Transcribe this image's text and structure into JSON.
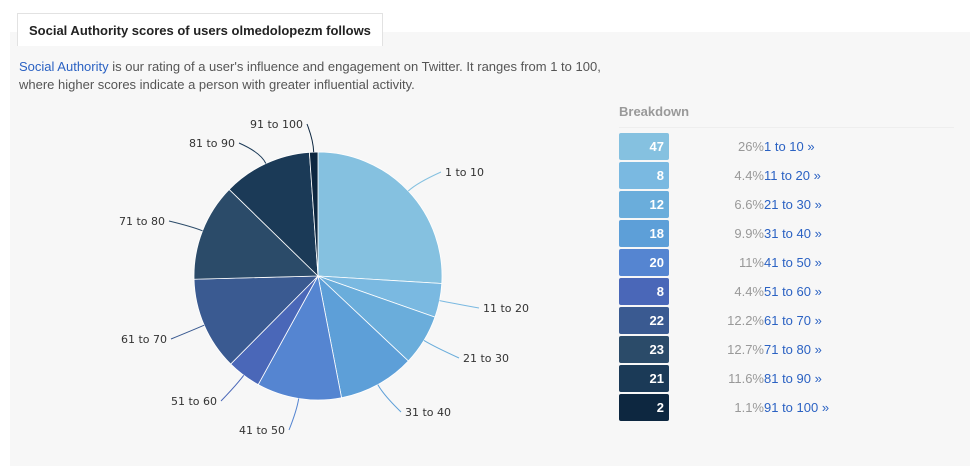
{
  "header": {
    "title": "Social Authority scores of users olmedolopezm follows"
  },
  "description": {
    "link_text": "Social Authority",
    "text": " is our rating of a user's influence and engagement on Twitter. It ranges from 1 to 100, where higher scores indicate a person with greater influential activity."
  },
  "breakdown": {
    "title": "Breakdown",
    "rows": [
      {
        "count": "47",
        "pct": "26%",
        "link": "1 to 10 »",
        "color": "#85c1e0"
      },
      {
        "count": "8",
        "pct": "4.4%",
        "link": "11 to 20 »",
        "color": "#7ab9e1"
      },
      {
        "count": "12",
        "pct": "6.6%",
        "link": "21 to 30 »",
        "color": "#6aaddb"
      },
      {
        "count": "18",
        "pct": "9.9%",
        "link": "31 to 40 »",
        "color": "#5d9fd8"
      },
      {
        "count": "20",
        "pct": "11%",
        "link": "41 to 50 »",
        "color": "#5585d1"
      },
      {
        "count": "8",
        "pct": "4.4%",
        "link": "51 to 60 »",
        "color": "#4a67b8"
      },
      {
        "count": "22",
        "pct": "12.2%",
        "link": "61 to 70 »",
        "color": "#3a5a91"
      },
      {
        "count": "23",
        "pct": "12.7%",
        "link": "71 to 80 »",
        "color": "#2b4b69"
      },
      {
        "count": "21",
        "pct": "11.6%",
        "link": "81 to 90 »",
        "color": "#1b3a57"
      },
      {
        "count": "2",
        "pct": "1.1%",
        "link": "91 to 100 »",
        "color": "#0d2740"
      }
    ]
  },
  "chart_data": {
    "type": "pie",
    "title": "",
    "categories": [
      "1 to 10",
      "11 to 20",
      "21 to 30",
      "31 to 40",
      "41 to 50",
      "51 to 60",
      "61 to 70",
      "71 to 80",
      "81 to 90",
      "91 to 100"
    ],
    "values": [
      47,
      8,
      12,
      18,
      20,
      8,
      22,
      23,
      21,
      2
    ],
    "colors": [
      "#85c1e0",
      "#7ab9e1",
      "#6aaddb",
      "#5d9fd8",
      "#5585d1",
      "#4a67b8",
      "#3a5a91",
      "#2b4b69",
      "#1b3a57",
      "#0d2740"
    ],
    "legend": "none",
    "labels": "outside-with-leader-lines"
  }
}
